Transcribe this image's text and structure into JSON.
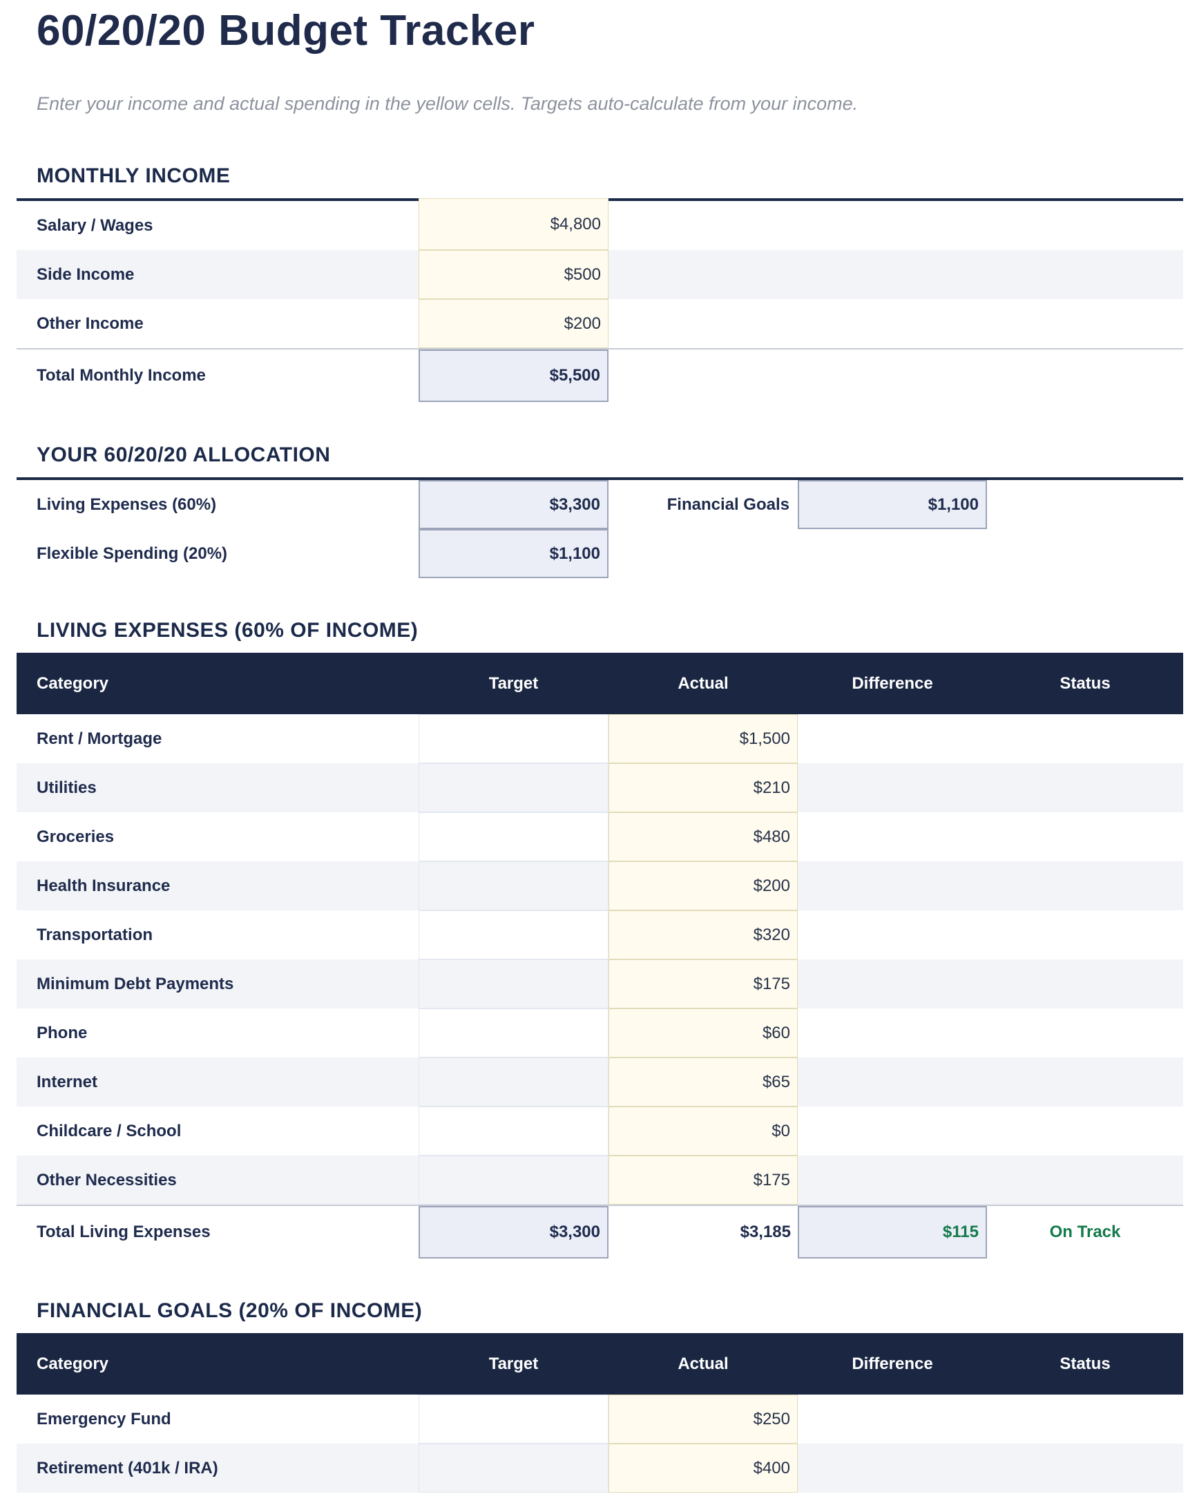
{
  "page": {
    "title": "60/20/20 Budget Tracker",
    "subtitle": "Enter your income and actual spending in the yellow cells. Targets auto-calculate from your income."
  },
  "colors": {
    "navy_text": "#1F2B4D",
    "table_header_bg": "#1B2742",
    "row_stripe": "#F2F4F7",
    "input_cell_bg": "#FFFCEF",
    "input_cell_border": "#E2DBB9",
    "computed_cell_bg": "#EBEEF7",
    "computed_cell_border": "#9CA4BA",
    "status_green": "#147A4A",
    "subtitle_gray": "#8C929D"
  },
  "income": {
    "heading": "MONTHLY INCOME",
    "rows": [
      {
        "label": "Salary / Wages",
        "value": "$4,800"
      },
      {
        "label": "Side Income",
        "value": "$500"
      },
      {
        "label": "Other Income",
        "value": "$200"
      }
    ],
    "total": {
      "label": "Total Monthly Income",
      "value": "$5,500"
    }
  },
  "allocation": {
    "heading": "YOUR 60/20/20 ALLOCATION",
    "rows": [
      {
        "label": "Living Expenses (60%)",
        "value": "$3,300",
        "label2": "Financial Goals",
        "value2": "$1,100"
      },
      {
        "label": "Flexible Spending (20%)",
        "value": "$1,100"
      }
    ]
  },
  "living_expenses": {
    "heading": "LIVING EXPENSES (60% OF INCOME)",
    "columns": {
      "category": "Category",
      "target": "Target",
      "actual": "Actual",
      "difference": "Difference",
      "status": "Status"
    },
    "rows": [
      {
        "category": "Rent / Mortgage",
        "actual": "$1,500"
      },
      {
        "category": "Utilities",
        "actual": "$210"
      },
      {
        "category": "Groceries",
        "actual": "$480"
      },
      {
        "category": "Health Insurance",
        "actual": "$200"
      },
      {
        "category": "Transportation",
        "actual": "$320"
      },
      {
        "category": "Minimum Debt Payments",
        "actual": "$175"
      },
      {
        "category": "Phone",
        "actual": "$60"
      },
      {
        "category": "Internet",
        "actual": "$65"
      },
      {
        "category": "Childcare / School",
        "actual": "$0"
      },
      {
        "category": "Other Necessities",
        "actual": "$175"
      }
    ],
    "total": {
      "category": "Total Living Expenses",
      "target": "$3,300",
      "actual": "$3,185",
      "difference": "$115",
      "status": "On Track"
    }
  },
  "financial_goals": {
    "heading": "FINANCIAL GOALS (20% OF INCOME)",
    "columns": {
      "category": "Category",
      "target": "Target",
      "actual": "Actual",
      "difference": "Difference",
      "status": "Status"
    },
    "rows": [
      {
        "category": "Emergency Fund",
        "actual": "$250"
      },
      {
        "category": "Retirement (401k / IRA)",
        "actual": "$400"
      }
    ]
  }
}
